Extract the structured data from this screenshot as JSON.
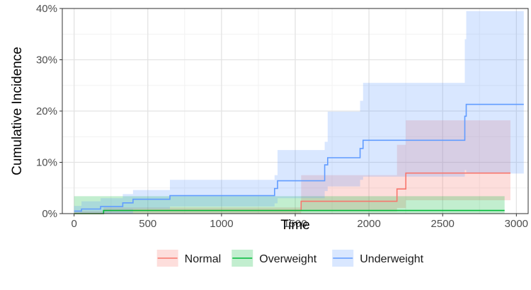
{
  "chart_data": {
    "type": "line",
    "subtype": "step",
    "title": "",
    "xlabel": "Time",
    "ylabel": "Cumulative Incidence",
    "xlim": [
      -80,
      3080
    ],
    "ylim": [
      0,
      40
    ],
    "x_ticks": [
      0,
      500,
      1000,
      1500,
      2000,
      2500,
      3000
    ],
    "x_tick_labels": [
      "0",
      "500",
      "1000",
      "1500",
      "2000",
      "2500",
      "3000"
    ],
    "y_ticks": [
      0,
      10,
      20,
      30,
      40
    ],
    "y_tick_labels": [
      "0%",
      "10%",
      "20%",
      "30%",
      "40%"
    ],
    "grid": true,
    "legend_position": "bottom",
    "series": [
      {
        "name": "Normal",
        "color": "#F8766D",
        "fill": "#F8766D",
        "x": [
          0,
          200,
          1540,
          2190,
          2250,
          2960
        ],
        "y": [
          0.0,
          0.6,
          2.4,
          4.8,
          7.9,
          7.9
        ],
        "upper": [
          0.5,
          1.2,
          7.5,
          13.4,
          18.2,
          18.2
        ],
        "lower": [
          0.0,
          0.0,
          0.4,
          1.1,
          2.6,
          2.6
        ]
      },
      {
        "name": "Overweight",
        "color": "#00BA38",
        "fill": "#00BA38",
        "x": [
          0,
          200,
          2920
        ],
        "y": [
          0.0,
          0.6,
          0.6
        ],
        "upper": [
          3.4,
          3.4,
          3.4
        ],
        "lower": [
          0.0,
          0.0,
          0.0
        ]
      },
      {
        "name": "Underweight",
        "color": "#619CFF",
        "fill": "#619CFF",
        "x": [
          0,
          50,
          180,
          330,
          400,
          650,
          1360,
          1380,
          1700,
          1720,
          1940,
          1960,
          2650,
          2660,
          3050
        ],
        "y": [
          0.5,
          0.9,
          1.4,
          2.1,
          2.8,
          3.5,
          4.9,
          6.4,
          9.5,
          10.9,
          12.7,
          14.3,
          19.0,
          21.3,
          21.3
        ],
        "upper": [
          1.5,
          2.4,
          3.0,
          3.8,
          4.6,
          6.6,
          7.5,
          12.4,
          14.0,
          19.9,
          22.0,
          25.5,
          34.0,
          39.5,
          39.5
        ],
        "lower": [
          0.0,
          0.0,
          0.0,
          0.0,
          0.9,
          1.4,
          2.0,
          3.0,
          4.4,
          5.3,
          6.6,
          7.2,
          8.5,
          7.8,
          7.8
        ]
      }
    ]
  }
}
